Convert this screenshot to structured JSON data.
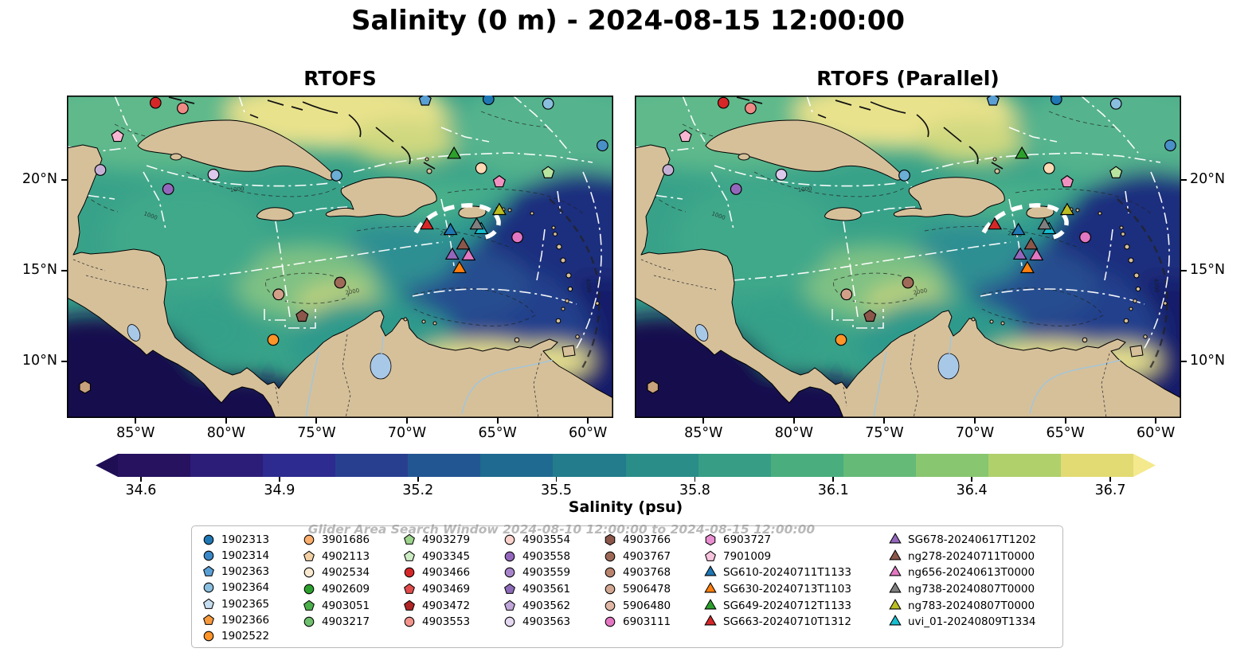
{
  "watermark": "Glider Area Search Window 2024-08-10 12:00:00 to 2024-08-15 12:00:00",
  "panels": [
    {
      "title": "RTOFS",
      "y_labels_side": "left"
    },
    {
      "title": "RTOFS (Parallel)",
      "y_labels_side": "right"
    }
  ],
  "chart_data": {
    "type": "heatmap",
    "title": "Salinity (0 m) - 2024-08-15 12:00:00",
    "subplots": [
      "RTOFS",
      "RTOFS (Parallel)"
    ],
    "field_summary": "Sea-surface salinity over the Caribbean; high salinity (~36.7 psu, yellow) over the Bahamas banks and along the Venezuelan coast; low salinity (~34.6 psu, dark blue) in the tropical Atlantic east of the Lesser Antilles and in the eastern Pacific corner; land masses tan; white dash-dot maritime boundaries; black dashed bathymetry contours.",
    "lon_range": [
      -88.8,
      -58.6
    ],
    "lat_range": [
      6.9,
      24.65
    ],
    "x_ticks": [
      {
        "value": -85,
        "label": "85°W"
      },
      {
        "value": -80,
        "label": "80°W"
      },
      {
        "value": -75,
        "label": "75°W"
      },
      {
        "value": -70,
        "label": "70°W"
      },
      {
        "value": -65,
        "label": "65°W"
      },
      {
        "value": -60,
        "label": "60°W"
      }
    ],
    "y_ticks": [
      {
        "value": 20,
        "label": "20°N"
      },
      {
        "value": 15,
        "label": "15°N"
      },
      {
        "value": 10,
        "label": "10°N"
      }
    ],
    "colorbar": {
      "label": "Salinity (psu)",
      "ticks": [
        34.6,
        34.9,
        35.2,
        35.5,
        35.8,
        36.1,
        36.4,
        36.7
      ],
      "value_range": [
        34.55,
        36.75
      ],
      "segment_colors": [
        "#26125f",
        "#2b1d78",
        "#2d2b8f",
        "#283f90",
        "#225692",
        "#1f6a90",
        "#227c8c",
        "#2a8d88",
        "#379d84",
        "#4aad7d",
        "#65ba77",
        "#88c670",
        "#b0d06c",
        "#e2da73"
      ],
      "left_arrow_color": "#200e55",
      "right_arrow_color": "#f4e98c"
    },
    "markers": [
      {
        "lon": -83.9,
        "lat": 24.25,
        "shape": "circle",
        "color": "#d62728"
      },
      {
        "lon": -82.4,
        "lat": 23.95,
        "shape": "circle",
        "color": "#ef8a85"
      },
      {
        "lon": -86.0,
        "lat": 22.4,
        "shape": "pentagon",
        "color": "#f7b6d2"
      },
      {
        "lon": -86.95,
        "lat": 20.55,
        "shape": "circle",
        "color": "#c5b0d5"
      },
      {
        "lon": -83.2,
        "lat": 19.5,
        "shape": "circle",
        "color": "#9467bd"
      },
      {
        "lon": -80.7,
        "lat": 20.3,
        "shape": "circle",
        "color": "#dcc9ec"
      },
      {
        "lon": -69.0,
        "lat": 24.4,
        "shape": "pentagon",
        "color": "#5a9fd4"
      },
      {
        "lon": -65.5,
        "lat": 24.45,
        "shape": "circle",
        "color": "#1f77b4"
      },
      {
        "lon": -62.2,
        "lat": 24.2,
        "shape": "circle",
        "color": "#8abede"
      },
      {
        "lon": -59.2,
        "lat": 21.9,
        "shape": "circle",
        "color": "#4a90c8"
      },
      {
        "lon": -73.9,
        "lat": 20.25,
        "shape": "circle",
        "color": "#6baed6"
      },
      {
        "lon": -67.4,
        "lat": 21.4,
        "shape": "triangle",
        "color": "#2ca02c"
      },
      {
        "lon": -65.9,
        "lat": 20.65,
        "shape": "circle",
        "color": "#fdd9b4"
      },
      {
        "lon": -64.9,
        "lat": 19.9,
        "shape": "pentagon",
        "color": "#f191c1"
      },
      {
        "lon": -62.2,
        "lat": 20.4,
        "shape": "pentagon",
        "color": "#b8e4a0"
      },
      {
        "lon": -64.9,
        "lat": 18.3,
        "shape": "triangle",
        "color": "#bcbd22"
      },
      {
        "lon": -68.9,
        "lat": 17.5,
        "shape": "triangle",
        "color": "#d62728"
      },
      {
        "lon": -67.6,
        "lat": 17.2,
        "shape": "triangle",
        "color": "#1f77b4"
      },
      {
        "lon": -65.9,
        "lat": 17.25,
        "shape": "triangle",
        "color": "#17becf"
      },
      {
        "lon": -66.15,
        "lat": 17.5,
        "shape": "triangle",
        "color": "#7f7f7f"
      },
      {
        "lon": -66.9,
        "lat": 16.4,
        "shape": "triangle",
        "color": "#8c564b"
      },
      {
        "lon": -67.5,
        "lat": 15.85,
        "shape": "triangle",
        "color": "#9467bd"
      },
      {
        "lon": -66.6,
        "lat": 15.8,
        "shape": "triangle",
        "color": "#e377c2"
      },
      {
        "lon": -67.1,
        "lat": 15.1,
        "shape": "triangle",
        "color": "#ff7f0e"
      },
      {
        "lon": -63.9,
        "lat": 16.85,
        "shape": "circle",
        "color": "#e377c2"
      },
      {
        "lon": -77.1,
        "lat": 13.7,
        "shape": "circle",
        "color": "#d2a089"
      },
      {
        "lon": -75.8,
        "lat": 12.5,
        "shape": "pentagon",
        "color": "#8c564b"
      },
      {
        "lon": -73.7,
        "lat": 14.35,
        "shape": "circle",
        "color": "#a06a58"
      },
      {
        "lon": -77.4,
        "lat": 11.2,
        "shape": "circle",
        "color": "#ff9428"
      },
      {
        "lon": -87.8,
        "lat": 8.6,
        "shape": "hexagon",
        "color": "#c8a27c"
      }
    ]
  },
  "legend": {
    "columns": [
      [
        {
          "shape": "circle",
          "color": "#1f77b4",
          "label": "1902313"
        },
        {
          "shape": "circle",
          "color": "#3a87c8",
          "label": "1902314"
        },
        {
          "shape": "pentagon",
          "color": "#5a9fd4",
          "label": "1902363"
        },
        {
          "shape": "circle",
          "color": "#8abede",
          "label": "1902364"
        },
        {
          "shape": "pentagon",
          "color": "#c6dcef",
          "label": "1902365"
        },
        {
          "shape": "pentagon",
          "color": "#f79a3e",
          "label": "1902366"
        },
        {
          "shape": "circle",
          "color": "#ff9428",
          "label": "1902522"
        }
      ],
      [
        {
          "shape": "circle",
          "color": "#fdae6b",
          "label": "3901686"
        },
        {
          "shape": "pentagon",
          "color": "#f2d0a4",
          "label": "4902113"
        },
        {
          "shape": "circle",
          "color": "#fbe9cf",
          "label": "4902534"
        },
        {
          "shape": "circle",
          "color": "#2ca02c",
          "label": "4902609"
        },
        {
          "shape": "pentagon",
          "color": "#4bb04a",
          "label": "4903051"
        },
        {
          "shape": "circle",
          "color": "#6fc06e",
          "label": "4903217"
        }
      ],
      [
        {
          "shape": "pentagon",
          "color": "#9cd48c",
          "label": "4903279"
        },
        {
          "shape": "pentagon",
          "color": "#cdecc4",
          "label": "4903345"
        },
        {
          "shape": "circle",
          "color": "#d62728",
          "label": "4903466"
        },
        {
          "shape": "pentagon",
          "color": "#e04b4b",
          "label": "4903469"
        },
        {
          "shape": "pentagon",
          "color": "#b02525",
          "label": "4903472"
        },
        {
          "shape": "circle",
          "color": "#f2938c",
          "label": "4903553"
        }
      ],
      [
        {
          "shape": "circle",
          "color": "#fbd3cc",
          "label": "4903554"
        },
        {
          "shape": "circle",
          "color": "#9467bd",
          "label": "4903558"
        },
        {
          "shape": "circle",
          "color": "#a885cb",
          "label": "4903559"
        },
        {
          "shape": "pentagon",
          "color": "#8d6bb8",
          "label": "4903561"
        },
        {
          "shape": "pentagon",
          "color": "#c0a6d9",
          "label": "4903562"
        },
        {
          "shape": "circle",
          "color": "#e5d8f1",
          "label": "4903563"
        }
      ],
      [
        {
          "shape": "hexagon",
          "color": "#8c564b",
          "label": "4903766"
        },
        {
          "shape": "circle",
          "color": "#9e6a58",
          "label": "4903767"
        },
        {
          "shape": "circle",
          "color": "#b8846e",
          "label": "4903768"
        },
        {
          "shape": "circle",
          "color": "#d3a893",
          "label": "5906478"
        },
        {
          "shape": "circle",
          "color": "#e0b6a4",
          "label": "5906480"
        },
        {
          "shape": "circle",
          "color": "#e377c2",
          "label": "6903111"
        }
      ],
      [
        {
          "shape": "hexagon",
          "color": "#ea8ed1",
          "label": "6903727"
        },
        {
          "shape": "pentagon",
          "color": "#f7c3dd",
          "label": "7901009"
        },
        {
          "shape": "triangle",
          "color": "#1f77b4",
          "label": "SG610-20240711T1133"
        },
        {
          "shape": "triangle",
          "color": "#ff7f0e",
          "label": "SG630-20240713T1103"
        },
        {
          "shape": "triangle",
          "color": "#2ca02c",
          "label": "SG649-20240712T1133"
        },
        {
          "shape": "triangle",
          "color": "#d62728",
          "label": "SG663-20240710T1312"
        }
      ],
      [
        {
          "shape": "triangle",
          "color": "#9467bd",
          "label": "SG678-20240617T1202"
        },
        {
          "shape": "triangle",
          "color": "#8c564b",
          "label": "ng278-20240711T0000"
        },
        {
          "shape": "triangle",
          "color": "#e377c2",
          "label": "ng656-20240613T0000"
        },
        {
          "shape": "triangle",
          "color": "#7f7f7f",
          "label": "ng738-20240807T0000"
        },
        {
          "shape": "triangle",
          "color": "#bcbd22",
          "label": "ng783-20240807T0000"
        },
        {
          "shape": "triangle",
          "color": "#17becf",
          "label": "uvi_01-20240809T1334"
        }
      ]
    ]
  }
}
